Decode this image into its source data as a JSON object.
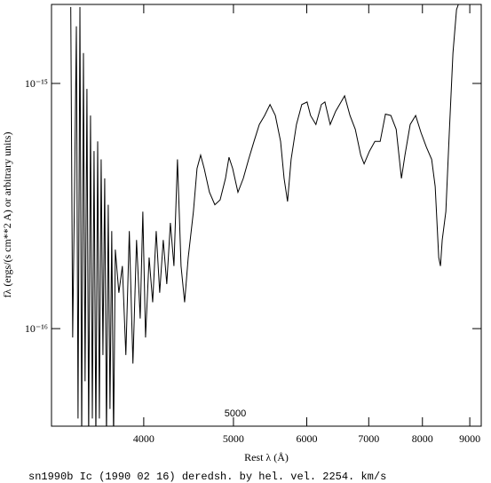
{
  "chart_data": {
    "type": "line",
    "xlabel": "Rest λ (Å)",
    "ylabel": "fλ (ergs/(s cm**2 A) or arbitrary units)",
    "footer": "sn1990b Ic (1990 02 16) deredsh. by hel. vel.  2254. km/s",
    "annotation": "5000",
    "xscale": "log",
    "yscale": "log",
    "color": "#000000",
    "xlim": [
      3180,
      9260
    ],
    "ylim": [
      4e-17,
      2.1e-15
    ],
    "xticks": [
      4000,
      5000,
      6000,
      7000,
      8000,
      9000
    ],
    "yticks": [
      {
        "value": 1e-16,
        "label": "10⁻¹⁶"
      },
      {
        "value": 1e-15,
        "label": "10⁻¹⁵"
      }
    ],
    "x": [
      3336,
      3352,
      3368,
      3383,
      3397,
      3413,
      3428,
      3443,
      3457,
      3473,
      3488,
      3504,
      3520,
      3535,
      3551,
      3567,
      3582,
      3598,
      3614,
      3630,
      3646,
      3662,
      3678,
      3694,
      3711,
      3727,
      3760,
      3793,
      3826,
      3859,
      3894,
      3929,
      3965,
      3991,
      4018,
      4054,
      4090,
      4126,
      4162,
      4199,
      4236,
      4274,
      4312,
      4350,
      4389,
      4428,
      4468,
      4526,
      4567,
      4608,
      4649,
      4710,
      4774,
      4837,
      4902,
      4945,
      4990,
      5056,
      5124,
      5192,
      5262,
      5332,
      5403,
      5476,
      5549,
      5622,
      5671,
      5720,
      5771,
      5848,
      5926,
      6005,
      6057,
      6138,
      6222,
      6277,
      6360,
      6447,
      6534,
      6592,
      6681,
      6770,
      6862,
      6920,
      7014,
      7108,
      7202,
      7297,
      7396,
      7495,
      7593,
      7660,
      7760,
      7866,
      7972,
      8079,
      8186,
      8258,
      8331,
      8367,
      8404,
      8480,
      8553,
      8631,
      8708,
      8748
    ],
    "values": [
      2.05e-15,
      9.2e-17,
      3.8e-16,
      1.71e-15,
      4.3e-17,
      2.05e-15,
      3.5e-17,
      1.33e-15,
      6.1e-17,
      9.5e-16,
      3.5e-17,
      7.4e-16,
      4.3e-17,
      5.3e-16,
      3.5e-17,
      5.8e-16,
      4.3e-17,
      4.9e-16,
      7.8e-17,
      4.1e-16,
      3.5e-17,
      3.2e-16,
      4.7e-17,
      2.5e-16,
      3.5e-17,
      2.1e-16,
      1.4e-16,
      1.8e-16,
      7.8e-17,
      2.5e-16,
      7.2e-17,
      2.3e-16,
      1.1e-16,
      3e-16,
      9.2e-17,
      1.95e-16,
      1.28e-16,
      2.5e-16,
      1.4e-16,
      2.3e-16,
      1.52e-16,
      2.7e-16,
      1.8e-16,
      4.9e-16,
      1.8e-16,
      1.28e-16,
      1.95e-16,
      3e-16,
      4.5e-16,
      5.1e-16,
      4.5e-16,
      3.6e-16,
      3.2e-16,
      3.35e-16,
      4.1e-16,
      5e-16,
      4.5e-16,
      3.6e-16,
      4.1e-16,
      4.9e-16,
      5.8e-16,
      6.8e-16,
      7.4e-16,
      8.2e-16,
      7.4e-16,
      5.8e-16,
      4.1e-16,
      3.3e-16,
      4.9e-16,
      6.8e-16,
      8.2e-16,
      8.4e-16,
      7.4e-16,
      6.8e-16,
      8.2e-16,
      8.4e-16,
      6.8e-16,
      7.7e-16,
      8.4e-16,
      8.9e-16,
      7.4e-16,
      6.5e-16,
      5.1e-16,
      4.7e-16,
      5.3e-16,
      5.8e-16,
      5.8e-16,
      7.5e-16,
      7.4e-16,
      6.5e-16,
      4.1e-16,
      5.1e-16,
      6.8e-16,
      7.4e-16,
      6.3e-16,
      5.5e-16,
      4.9e-16,
      3.8e-16,
      1.95e-16,
      1.8e-16,
      2.3e-16,
      3e-16,
      6.3e-16,
      1.33e-15,
      2e-15,
      2.1e-15
    ]
  }
}
